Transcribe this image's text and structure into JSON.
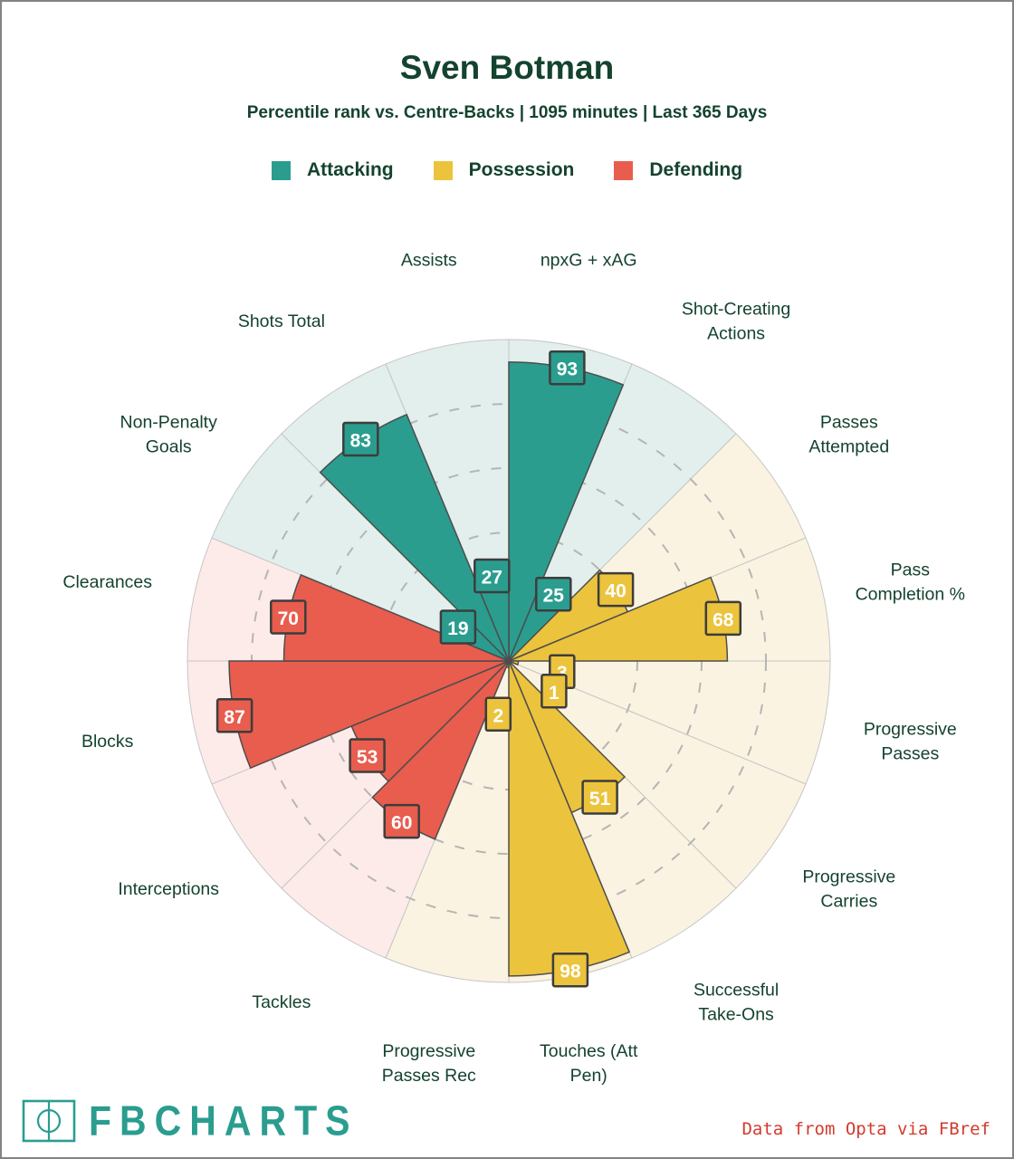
{
  "header": {
    "title": "Sven Botman",
    "subtitle": "Percentile rank vs. Centre-Backs | 1095 minutes | Last 365 Days",
    "text_color": "#14432e"
  },
  "legend": {
    "items": [
      {
        "key": "attacking",
        "label": "Attacking"
      },
      {
        "key": "possession",
        "label": "Possession"
      },
      {
        "key": "defending",
        "label": "Defending"
      }
    ]
  },
  "footer": {
    "brand": "FBCHARTS",
    "brand_icon": "football-pitch-icon",
    "brand_color": "#2a9d8f",
    "credit": "Data from Opta via FBref",
    "credit_color": "#d23b2e"
  },
  "chart_data": {
    "type": "pizza-radar",
    "title": "Sven Botman",
    "scale": "percentile 0-100",
    "direction": "clockwise from top",
    "slice_angle_deg": 22.5,
    "grid": {
      "dashed_rings_pct": [
        20,
        40,
        60,
        80
      ],
      "outer_ring_pct": 100,
      "ring_color": "#b5b5b5",
      "spoke_color": "#c6c6c6",
      "outline_color": "#4d4d4d",
      "badge_border_color": "#3d3d3d",
      "badge_text_color": "#ffffff"
    },
    "groups": {
      "attacking": {
        "label": "Attacking",
        "color": "#2a9d8f",
        "bg": "#e2efed"
      },
      "possession": {
        "label": "Possession",
        "color": "#ecc33c",
        "bg": "#faf3e1"
      },
      "defending": {
        "label": "Defending",
        "color": "#e85d4e",
        "bg": "#fdebe9"
      }
    },
    "slices": [
      {
        "label": [
          "npxG + xAG"
        ],
        "value": 93,
        "group": "attacking"
      },
      {
        "label": [
          "Shot-Creating",
          "Actions"
        ],
        "value": 25,
        "group": "attacking"
      },
      {
        "label": [
          "Passes",
          "Attempted"
        ],
        "value": 40,
        "group": "possession"
      },
      {
        "label": [
          "Pass",
          "Completion %"
        ],
        "value": 68,
        "group": "possession"
      },
      {
        "label": [
          "Progressive",
          "Passes"
        ],
        "value": 3,
        "group": "possession"
      },
      {
        "label": [
          "Progressive",
          "Carries"
        ],
        "value": 1,
        "group": "possession"
      },
      {
        "label": [
          "Successful",
          "Take-Ons"
        ],
        "value": 51,
        "group": "possession"
      },
      {
        "label": [
          "Touches (Att",
          "Pen)"
        ],
        "value": 98,
        "group": "possession"
      },
      {
        "label": [
          "Progressive",
          "Passes Rec"
        ],
        "value": 2,
        "group": "possession"
      },
      {
        "label": [
          "Tackles"
        ],
        "value": 60,
        "group": "defending"
      },
      {
        "label": [
          "Interceptions"
        ],
        "value": 53,
        "group": "defending"
      },
      {
        "label": [
          "Blocks"
        ],
        "value": 87,
        "group": "defending"
      },
      {
        "label": [
          "Clearances"
        ],
        "value": 70,
        "group": "defending"
      },
      {
        "label": [
          "Non-Penalty",
          "Goals"
        ],
        "value": 19,
        "group": "attacking"
      },
      {
        "label": [
          "Shots Total"
        ],
        "value": 83,
        "group": "attacking"
      },
      {
        "label": [
          "Assists"
        ],
        "value": 27,
        "group": "attacking"
      }
    ],
    "text_color": "#14432e"
  }
}
